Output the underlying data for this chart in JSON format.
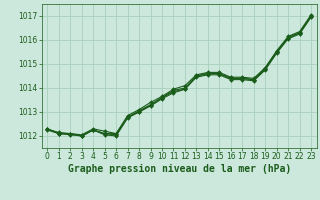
{
  "title": "Graphe pression niveau de la mer (hPa)",
  "xlim": [
    -0.5,
    23.5
  ],
  "ylim": [
    1011.5,
    1017.5
  ],
  "yticks": [
    1012,
    1013,
    1014,
    1015,
    1016,
    1017
  ],
  "xticks": [
    0,
    1,
    2,
    3,
    4,
    5,
    6,
    7,
    8,
    9,
    10,
    11,
    12,
    13,
    14,
    15,
    16,
    17,
    18,
    19,
    20,
    21,
    22,
    23
  ],
  "bg_color": "#cce8dc",
  "grid_color": "#aacfbf",
  "line_color": "#1a5c1a",
  "series": [
    [
      1012.3,
      1012.1,
      1012.1,
      1012.0,
      1012.25,
      1012.1,
      1012.05,
      1012.8,
      1013.0,
      1013.3,
      1013.6,
      1013.85,
      1013.95,
      1014.5,
      1014.6,
      1014.6,
      1014.4,
      1014.4,
      1014.35,
      1014.8,
      1015.5,
      1016.1,
      1016.3,
      1017.0
    ],
    [
      1012.3,
      1012.1,
      1012.1,
      1012.0,
      1012.25,
      1012.1,
      1012.1,
      1012.85,
      1013.1,
      1013.4,
      1013.65,
      1013.95,
      1014.1,
      1014.55,
      1014.65,
      1014.65,
      1014.45,
      1014.45,
      1014.4,
      1014.85,
      1015.55,
      1016.15,
      1016.35,
      1017.05
    ],
    [
      1012.28,
      1012.15,
      1012.1,
      1012.05,
      1012.3,
      1012.2,
      1012.1,
      1012.78,
      1013.05,
      1013.3,
      1013.6,
      1013.9,
      1014.0,
      1014.5,
      1014.6,
      1014.6,
      1014.4,
      1014.4,
      1014.35,
      1014.8,
      1015.5,
      1016.1,
      1016.3,
      1017.0
    ],
    [
      1012.25,
      1012.1,
      1012.05,
      1012.0,
      1012.25,
      1012.05,
      1012.0,
      1012.75,
      1013.0,
      1013.25,
      1013.55,
      1013.8,
      1013.95,
      1014.45,
      1014.55,
      1014.55,
      1014.35,
      1014.35,
      1014.3,
      1014.75,
      1015.45,
      1016.05,
      1016.25,
      1016.95
    ]
  ],
  "marker": "D",
  "marker_size": 2.0,
  "line_width": 0.8,
  "tick_fontsize": 5.5,
  "title_fontsize": 7.0
}
